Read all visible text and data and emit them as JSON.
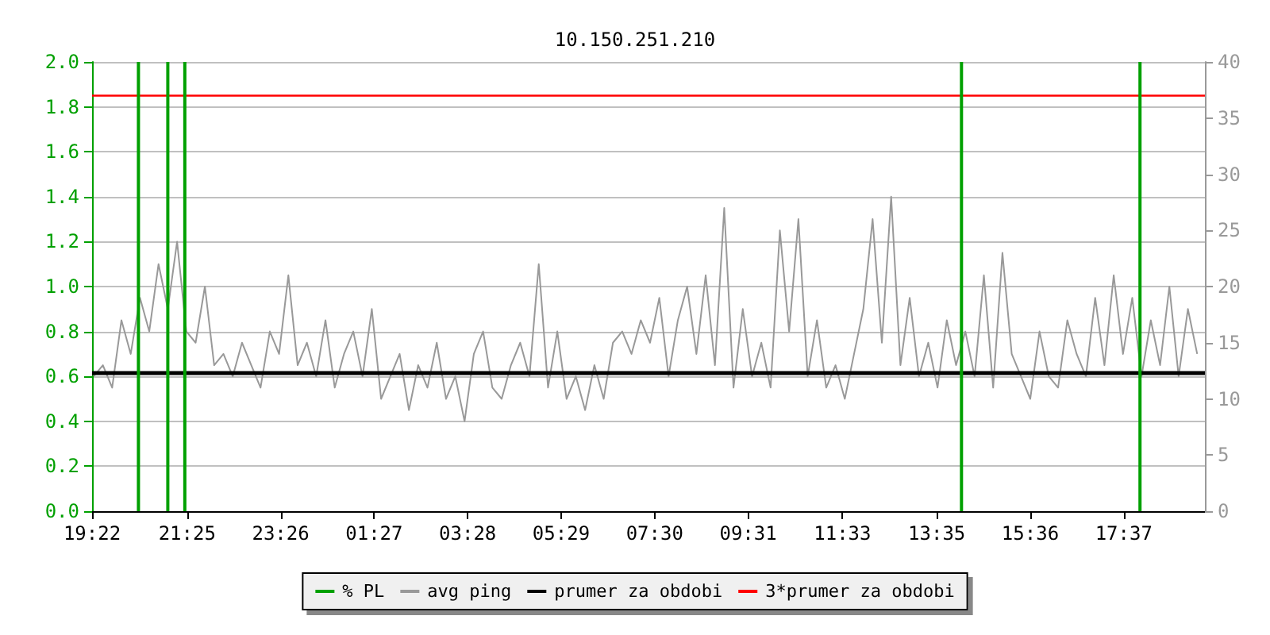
{
  "chart_data": {
    "type": "line",
    "title": "10.150.251.210",
    "xlim": [
      "--01-01T19:22",
      "--01-02T19:22"
    ],
    "xticks": [
      {
        "value": "--01-01T19:22",
        "label": "19:22"
      },
      {
        "value": "--01-01T21:25",
        "label": "21:25"
      },
      {
        "value": "--01-01T23:26",
        "label": "23:26"
      },
      {
        "value": "--01-02T01:27",
        "label": "01:27"
      },
      {
        "value": "--01-02T03:28",
        "label": "03:28"
      },
      {
        "value": "--01-02T05:29",
        "label": "05:29"
      },
      {
        "value": "--01-02T07:30",
        "label": "07:30"
      },
      {
        "value": "--01-02T09:31",
        "label": "09:31"
      },
      {
        "value": "--01-02T11:33",
        "label": "11:33"
      },
      {
        "value": "--01-02T13:35",
        "label": "13:35"
      },
      {
        "value": "--01-02T15:36",
        "label": "15:36"
      },
      {
        "value": "--01-02T17:37",
        "label": "17:37"
      }
    ],
    "ylim": [
      0,
      2
    ],
    "yticks": [
      {
        "value": 0,
        "label": "0.0"
      },
      0.2,
      0.4,
      0.6,
      0.8,
      {
        "value": 1,
        "label": "1.0"
      },
      1.2,
      1.4,
      1.6,
      1.8,
      {
        "value": 2,
        "label": "2.0"
      }
    ],
    "y2lim": [
      0,
      40
    ],
    "y2ticks": [
      0,
      5,
      10,
      15,
      20,
      25,
      30,
      35,
      40
    ],
    "x": [
      "--01-01T19:24",
      "--01-01T19:36",
      "--01-01T19:48",
      "--01-01T20:00",
      "--01-01T20:12",
      "--01-01T20:24",
      "--01-01T20:36",
      "--01-01T20:48",
      "--01-01T21:00",
      "--01-01T21:12",
      "--01-01T21:24",
      "--01-01T21:36",
      "--01-01T21:48",
      "--01-01T22:00",
      "--01-01T22:12",
      "--01-01T22:24",
      "--01-01T22:36",
      "--01-01T22:48",
      "--01-01T23:00",
      "--01-01T23:12",
      "--01-01T23:24",
      "--01-01T23:36",
      "--01-01T23:48",
      "--01-02T00:00",
      "--01-02T00:12",
      "--01-02T00:24",
      "--01-02T00:36",
      "--01-02T00:48",
      "--01-02T01:00",
      "--01-02T01:12",
      "--01-02T01:24",
      "--01-02T01:36",
      "--01-02T01:48",
      "--01-02T02:00",
      "--01-02T02:12",
      "--01-02T02:24",
      "--01-02T02:36",
      "--01-02T02:48",
      "--01-02T03:00",
      "--01-02T03:12",
      "--01-02T03:24",
      "--01-02T03:36",
      "--01-02T03:48",
      "--01-02T04:00",
      "--01-02T04:12",
      "--01-02T04:24",
      "--01-02T04:36",
      "--01-02T04:48",
      "--01-02T05:00",
      "--01-02T05:12",
      "--01-02T05:24",
      "--01-02T05:36",
      "--01-02T05:48",
      "--01-02T06:00",
      "--01-02T06:12",
      "--01-02T06:24",
      "--01-02T06:36",
      "--01-02T06:48",
      "--01-02T07:00",
      "--01-02T07:12",
      "--01-02T07:24",
      "--01-02T07:36",
      "--01-02T07:48",
      "--01-02T08:00",
      "--01-02T08:12",
      "--01-02T08:24",
      "--01-02T08:36",
      "--01-02T08:48",
      "--01-02T09:00",
      "--01-02T09:12",
      "--01-02T09:24",
      "--01-02T09:36",
      "--01-02T09:48",
      "--01-02T10:00",
      "--01-02T10:12",
      "--01-02T10:24",
      "--01-02T10:36",
      "--01-02T10:48",
      "--01-02T11:00",
      "--01-02T11:12",
      "--01-02T11:24",
      "--01-02T11:36",
      "--01-02T11:48",
      "--01-02T12:00",
      "--01-02T12:12",
      "--01-02T12:24",
      "--01-02T12:36",
      "--01-02T12:48",
      "--01-02T13:00",
      "--01-02T13:12",
      "--01-02T13:24",
      "--01-02T13:36",
      "--01-02T13:48",
      "--01-02T14:00",
      "--01-02T14:12",
      "--01-02T14:24",
      "--01-02T14:36",
      "--01-02T14:48",
      "--01-02T15:00",
      "--01-02T15:12",
      "--01-02T15:24",
      "--01-02T15:36",
      "--01-02T15:48",
      "--01-02T16:00",
      "--01-02T16:12",
      "--01-02T16:24",
      "--01-02T16:36",
      "--01-02T16:48",
      "--01-02T17:00",
      "--01-02T17:12",
      "--01-02T17:24",
      "--01-02T17:36",
      "--01-02T17:48",
      "--01-02T18:00",
      "--01-02T18:12",
      "--01-02T18:24",
      "--01-02T18:36",
      "--01-02T18:48",
      "--01-02T19:00",
      "--01-02T19:12"
    ],
    "series": [
      {
        "name": "% PL",
        "type": "bar",
        "color": "#00a000",
        "x": [
          "--01-01T20:22",
          "--01-01T21:00",
          "--01-01T21:22",
          "--01-02T14:07",
          "--01-02T17:58"
        ],
        "values": [
          2,
          2,
          2,
          2,
          2
        ]
      },
      {
        "name": "avg ping",
        "color": "#999999",
        "axis": "y2",
        "values": [
          12,
          13,
          11,
          17,
          14,
          19,
          16,
          22,
          18,
          24,
          16,
          15,
          20,
          13,
          14,
          12,
          15,
          13,
          11,
          16,
          14,
          21,
          13,
          15,
          12,
          17,
          11,
          14,
          16,
          12,
          18,
          10,
          12,
          14,
          9,
          13,
          11,
          15,
          10,
          12,
          8,
          14,
          16,
          11,
          10,
          13,
          15,
          12,
          22,
          11,
          16,
          10,
          12,
          9,
          13,
          10,
          15,
          16,
          14,
          17,
          15,
          19,
          12,
          17,
          20,
          14,
          21,
          13,
          27,
          11,
          18,
          12,
          15,
          11,
          25,
          16,
          26,
          12,
          17,
          11,
          13,
          10,
          14,
          18,
          26,
          15,
          28,
          13,
          19,
          12,
          15,
          11,
          17,
          13,
          16,
          12,
          21,
          11,
          23,
          14,
          12,
          10,
          16,
          12,
          11,
          17,
          14,
          12,
          19,
          13,
          21,
          14,
          19,
          12,
          17,
          13,
          20,
          12,
          18,
          14
        ]
      },
      {
        "name": "prumer za obdobi",
        "color": "#000000",
        "axis": "y2",
        "x": [
          "--01-01T19:22",
          "--01-02T19:22"
        ],
        "values": [
          12.3,
          12.3
        ]
      },
      {
        "name": "3*prumer za obdobi",
        "color": "#ff0000",
        "axis": "y2",
        "x": [
          "--01-01T19:22",
          "--01-02T19:22"
        ],
        "values": [
          37,
          37
        ]
      }
    ],
    "grid": "y",
    "legend": "bottom",
    "marker": "none",
    "line_style": "solid"
  }
}
